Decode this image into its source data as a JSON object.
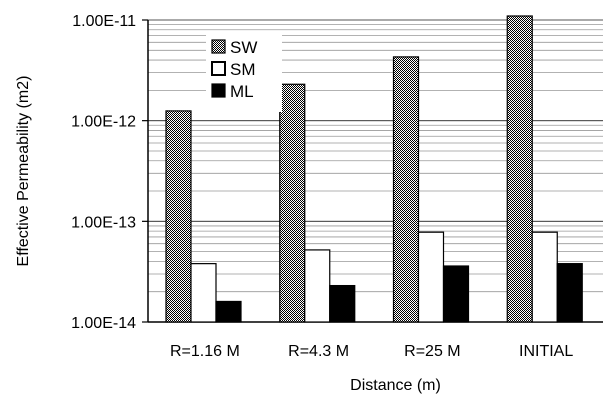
{
  "chart_data": {
    "type": "bar",
    "title": "",
    "xlabel": "Distance (m)",
    "ylabel": "Effective Permeability (m2)",
    "yscale": "log",
    "ylim": [
      1e-14,
      1e-11
    ],
    "ytick_labels": [
      "1.00E-11",
      "1.00E-12",
      "1.00E-13",
      "1.00E-14"
    ],
    "ytick_values": [
      1e-11,
      1e-12,
      1e-13,
      1e-14
    ],
    "categories": [
      "R=1.16 M",
      "R=4.3 M",
      "R=25 M",
      "INITIAL"
    ],
    "series": [
      {
        "name": "SW",
        "values": [
          1.25e-12,
          2.3e-12,
          4.3e-12,
          1.1e-11
        ]
      },
      {
        "name": "SM",
        "values": [
          3.8e-14,
          5.2e-14,
          7.8e-14,
          7.8e-14
        ]
      },
      {
        "name": "ML",
        "values": [
          1.6e-14,
          2.3e-14,
          3.6e-14,
          3.8e-14
        ]
      }
    ],
    "legend_position": "top-left",
    "grid": "horizontal minor gridlines"
  }
}
